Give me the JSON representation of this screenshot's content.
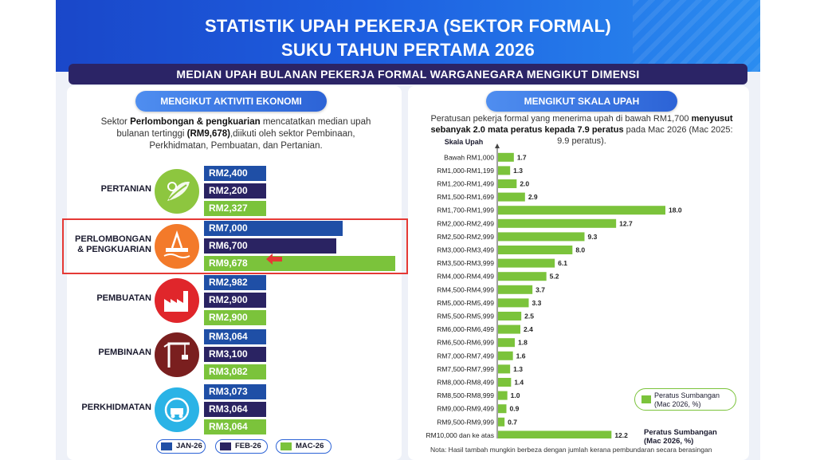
{
  "header": {
    "title_line1": "STATISTIK UPAH PEKERJA (SEKTOR FORMAL)",
    "title_line2": "SUKU TAHUN PERTAMA 2026",
    "subtitle": "MEDIAN UPAH BULANAN PEKERJA FORMAL WARGANEGARA MENGIKUT DIMENSI"
  },
  "left": {
    "pill": "MENGIKUT AKTIVITI EKONOMI",
    "desc_pre": "Sektor ",
    "desc_bold1": "Perlombongan & pengkuarian",
    "desc_mid": " mencatatkan median upah bulanan tertinggi ",
    "desc_bold2": "(RM9,678)",
    "desc_post": ",diikuti oleh sektor Pembinaan, Perkhidmatan, Pembuatan, dan Pertanian.",
    "legend": [
      "JAN-26",
      "FEB-26",
      "MAC-26"
    ]
  },
  "sectors": [
    {
      "name": "PERTANIAN",
      "icon": "agriculture-icon",
      "color": "#8dc63f",
      "values": [
        2400,
        2200,
        2327
      ],
      "labels": [
        "RM2,400",
        "RM2,200",
        "RM2,327"
      ]
    },
    {
      "name": "PERLOMBONGAN & PENGKUARIAN",
      "icon": "oil-rig-icon",
      "color": "#f37a2a",
      "values": [
        7000,
        6700,
        9678
      ],
      "labels": [
        "RM7,000",
        "RM6,700",
        "RM9,678"
      ]
    },
    {
      "name": "PEMBUATAN",
      "icon": "factory-icon",
      "color": "#e0262b",
      "values": [
        2982,
        2900,
        2900
      ],
      "labels": [
        "RM2,982",
        "RM2,900",
        "RM2,900"
      ]
    },
    {
      "name": "PEMBINAAN",
      "icon": "crane-icon",
      "color": "#7a1f1f",
      "values": [
        3064,
        3100,
        3082
      ],
      "labels": [
        "RM3,064",
        "RM3,100",
        "RM3,082"
      ]
    },
    {
      "name": "PERKHIDMATAN",
      "icon": "services-icon",
      "color": "#2ab3e6",
      "values": [
        3073,
        3064,
        3064
      ],
      "labels": [
        "RM3,073",
        "RM3,064",
        "RM3,064"
      ]
    }
  ],
  "right": {
    "pill": "MENGIKUT SKALA UPAH",
    "desc_pre": "Peratusan pekerja formal yang menerima upah di bawah RM1,700 ",
    "desc_bold": "menyusut sebanyak 2.0 mata peratus kepada 7.9 peratus",
    "desc_post": " pada Mac 2026 (Mac 2025: 9.9 peratus).",
    "legend_label": "Peratus Sumbangan (Mac 2026, %)",
    "note": "Nota: Hasil tambah mungkin berbeza dengan jumlah kerana pembundaran secara berasingan"
  },
  "chart_data": {
    "type": "bar",
    "orientation": "horizontal",
    "ylabel": "Skala Upah",
    "xlabel": "Peratus Sumbangan (Mac 2026, %)",
    "categories": [
      "Bawah RM1,000",
      "RM1,000-RM1,199",
      "RM1,200-RM1,499",
      "RM1,500-RM1,699",
      "RM1,700-RM1,999",
      "RM2,000-RM2,499",
      "RM2,500-RM2,999",
      "RM3,000-RM3,499",
      "RM3,500-RM3,999",
      "RM4,000-RM4,499",
      "RM4,500-RM4,999",
      "RM5,000-RM5,499",
      "RM5,500-RM5,999",
      "RM6,000-RM6,499",
      "RM6,500-RM6,999",
      "RM7,000-RM7,499",
      "RM7,500-RM7,999",
      "RM8,000-RM8,499",
      "RM8,500-RM8,999",
      "RM9,000-RM9,499",
      "RM9,500-RM9,999",
      "RM10,000 dan ke atas"
    ],
    "series": [
      {
        "name": "Peratus Sumbangan (Mac 2026, %)",
        "values": [
          1.7,
          1.3,
          2.0,
          2.9,
          18.0,
          12.7,
          9.3,
          8.0,
          6.1,
          5.2,
          3.7,
          3.3,
          2.5,
          2.4,
          1.8,
          1.6,
          1.3,
          1.4,
          1.0,
          0.9,
          0.7,
          12.2
        ],
        "labels": [
          "1.7",
          "1.3",
          "2.0",
          "2.9",
          "18.0",
          "12.7",
          "9.3",
          "8.0",
          "6.1",
          "5.2",
          "3.7",
          "3.3",
          "2.5",
          "2.4",
          "1.8",
          "1.6",
          "1.3",
          "1.4",
          "1.0",
          "0.9",
          "0.7",
          "12.2"
        ]
      }
    ],
    "xlim": [
      0,
      18.0
    ],
    "grid": false
  },
  "colors": {
    "jan": "#1f4fa6",
    "feb": "#2a2362",
    "mac": "#7bc33b",
    "bar": "#7bc33b"
  }
}
